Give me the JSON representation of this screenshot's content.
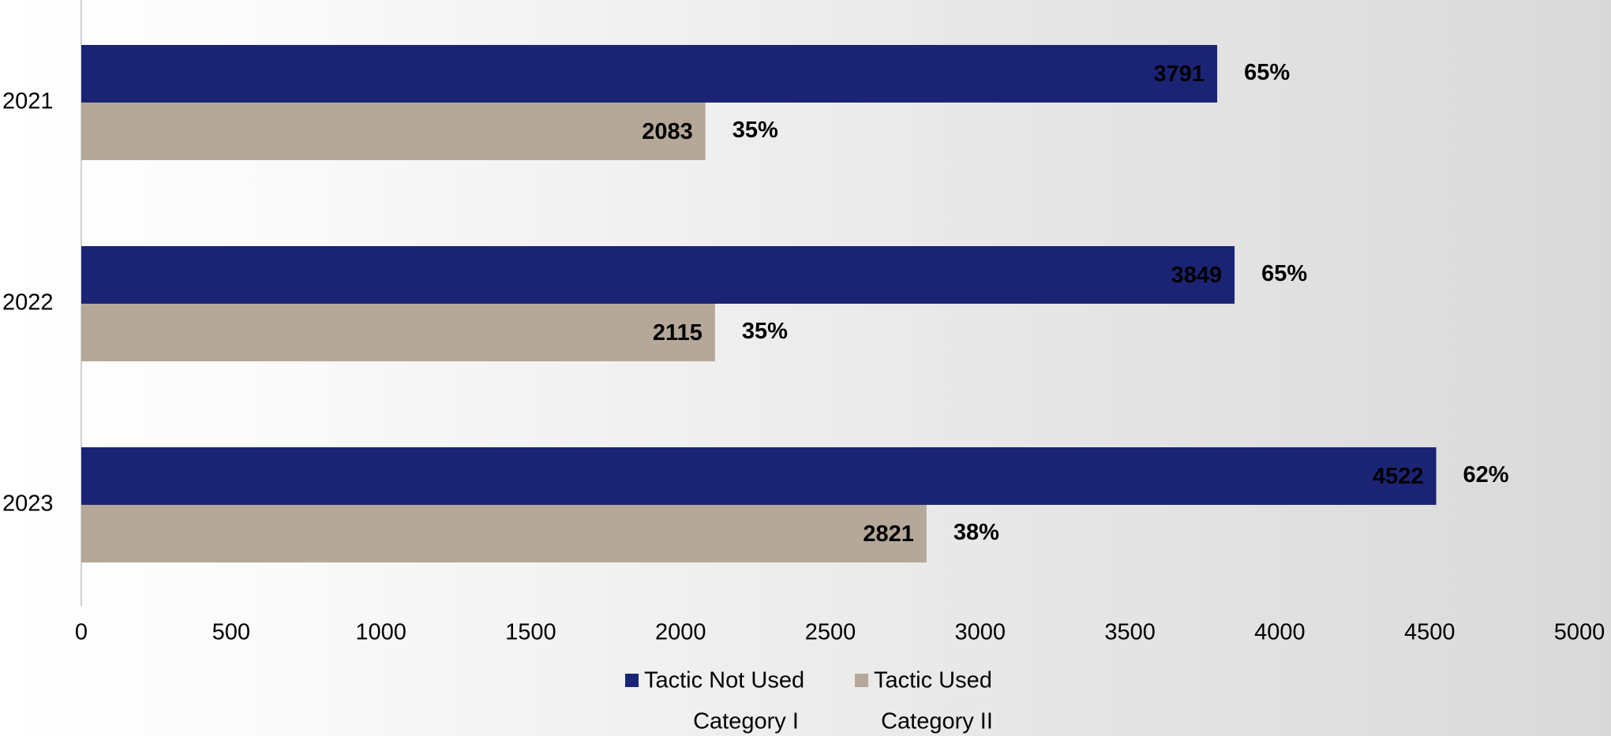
{
  "chart_data": {
    "type": "hbar",
    "categories": [
      "2021",
      "2022",
      "2023"
    ],
    "series": [
      {
        "name": "Tactic Not Used",
        "color": "#1b2474",
        "label_color": "#ffffff",
        "values": [
          3791,
          3849,
          4522
        ],
        "percent": [
          65,
          65,
          62
        ],
        "percent_labels": [
          "65%",
          "65%",
          "62%"
        ]
      },
      {
        "name": "Tactic Used",
        "color": "#b5a898",
        "label_color": "#404040",
        "values": [
          2083,
          2115,
          2821
        ],
        "percent": [
          35,
          35,
          38
        ],
        "percent_labels": [
          "35%",
          "35%",
          "38%"
        ]
      }
    ],
    "legend_notes": [
      "Category I",
      "Category II"
    ],
    "xlim": [
      0,
      5000
    ],
    "xticks": [
      0,
      500,
      1000,
      1500,
      2000,
      2500,
      3000,
      3500,
      4000,
      4500,
      5000
    ]
  }
}
